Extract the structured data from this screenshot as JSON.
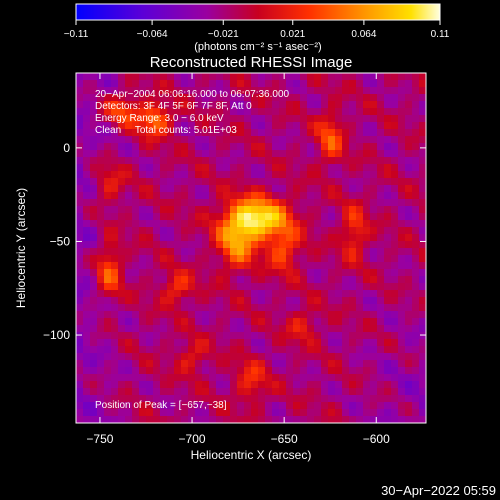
{
  "chart_data": {
    "type": "heatmap",
    "title": "Reconstructed RHESSI Image",
    "xlabel": "Heliocentric X (arcsec)",
    "ylabel": "Heliocentric Y (arcsec)",
    "xlim": [
      -763,
      -573
    ],
    "ylim": [
      -147,
      40
    ],
    "x_ticks": [
      -750,
      -700,
      -650,
      -600
    ],
    "y_ticks": [
      0,
      -50,
      -100
    ],
    "x_tick_labels": [
      "−750",
      "−700",
      "−650",
      "−600"
    ],
    "y_tick_labels": [
      "0",
      "−50",
      "−100"
    ],
    "colorbar": {
      "range": [
        -0.11,
        0.11
      ],
      "ticks": [
        -0.11,
        -0.064,
        -0.021,
        0.021,
        0.064,
        0.11
      ],
      "tick_labels": [
        "−0.11",
        "−0.064",
        "−0.021",
        "0.021",
        "0.064",
        "0.11"
      ],
      "unit_label": "(photons cm⁻² s⁻¹ asec⁻²)"
    },
    "info_lines": [
      "20−Apr−2004 06:06:16.000 to 06:07:36.000",
      "Detectors: 3F 4F 5F 6F 7F 8F, Att 0",
      "Energy Range: 3.0 − 6.0 keV",
      "Clean     Total counts: 5.01E+03"
    ],
    "peak_label": "Position of Peak = [−657,−38]",
    "peak": [
      -657,
      -38
    ],
    "sources": [
      {
        "x": -665,
        "y": -38,
        "sx": 12,
        "sy": 8,
        "amp": 1.0
      },
      {
        "x": -676,
        "y": -52,
        "sx": 7,
        "sy": 10,
        "amp": 0.55
      },
      {
        "x": -650,
        "y": -55,
        "sx": 6,
        "sy": 8,
        "amp": 0.45
      },
      {
        "x": -720,
        "y": 15,
        "sx": 6,
        "sy": 6,
        "amp": 0.6
      },
      {
        "x": -738,
        "y": 20,
        "sx": 7,
        "sy": 6,
        "amp": 0.45
      },
      {
        "x": -745,
        "y": -65,
        "sx": 5,
        "sy": 12,
        "amp": 0.5
      },
      {
        "x": -708,
        "y": -75,
        "sx": 6,
        "sy": 6,
        "amp": 0.4
      },
      {
        "x": -625,
        "y": 5,
        "sx": 5,
        "sy": 10,
        "amp": 0.45
      },
      {
        "x": -612,
        "y": -45,
        "sx": 5,
        "sy": 10,
        "amp": 0.4
      },
      {
        "x": -668,
        "y": -125,
        "sx": 6,
        "sy": 8,
        "amp": 0.35
      },
      {
        "x": -700,
        "y": -112,
        "sx": 6,
        "sy": 6,
        "amp": 0.3
      },
      {
        "x": -640,
        "y": -95,
        "sx": 6,
        "sy": 6,
        "amp": 0.3
      },
      {
        "x": -745,
        "y": -20,
        "sx": 6,
        "sy": 8,
        "amp": 0.35
      }
    ]
  },
  "timestamp": "30−Apr−2022 05:59"
}
